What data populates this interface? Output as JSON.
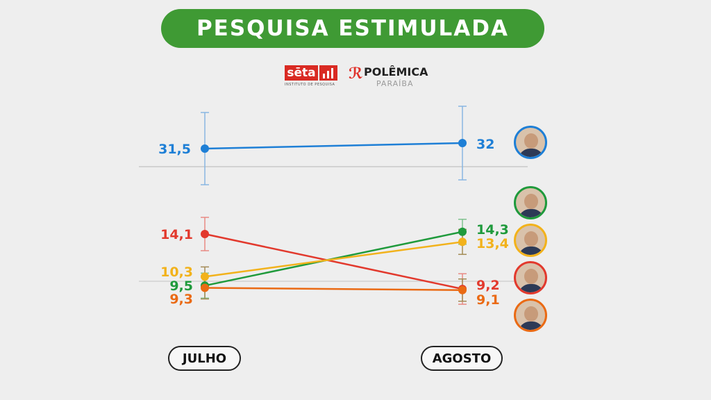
{
  "title": "PESQUISA ESTIMULADA",
  "logos": {
    "seta": "sēta",
    "seta_sub": "INSTITUTO DE PESQUISA",
    "polemica": "POLÊMICA",
    "polemica_sub": "PARAÍBA"
  },
  "chart_data": {
    "type": "line",
    "title": "PESQUISA ESTIMULADA",
    "x": [
      "JULHO",
      "AGOSTO"
    ],
    "series": [
      {
        "color": "#1e7fd6",
        "values": [
          31.5,
          32
        ],
        "labels": [
          "31,5",
          "32"
        ],
        "error_bars": true
      },
      {
        "color": "#e2392d",
        "values": [
          14.1,
          9.2
        ],
        "labels": [
          "14,1",
          "9,2"
        ],
        "error_bars": true
      },
      {
        "color": "#1f9a3c",
        "values": [
          9.5,
          14.3
        ],
        "labels": [
          "9,5",
          "14,3"
        ],
        "error_bars": true
      },
      {
        "color": "#f2b21b",
        "values": [
          10.3,
          13.4
        ],
        "labels": [
          "10,3",
          "13,4"
        ],
        "error_bars": true
      },
      {
        "color": "#ea6a14",
        "values": [
          9.3,
          9.1
        ],
        "labels": [
          "9,3",
          "9,1"
        ],
        "error_bars": true
      }
    ],
    "grid": false,
    "legend": "candidate photos at right"
  },
  "avatars": [
    {
      "color": "#1e7fd6"
    },
    {
      "color": "#1f9a3c"
    },
    {
      "color": "#f2b21b"
    },
    {
      "color": "#e2392d"
    },
    {
      "color": "#ea6a14"
    }
  ]
}
